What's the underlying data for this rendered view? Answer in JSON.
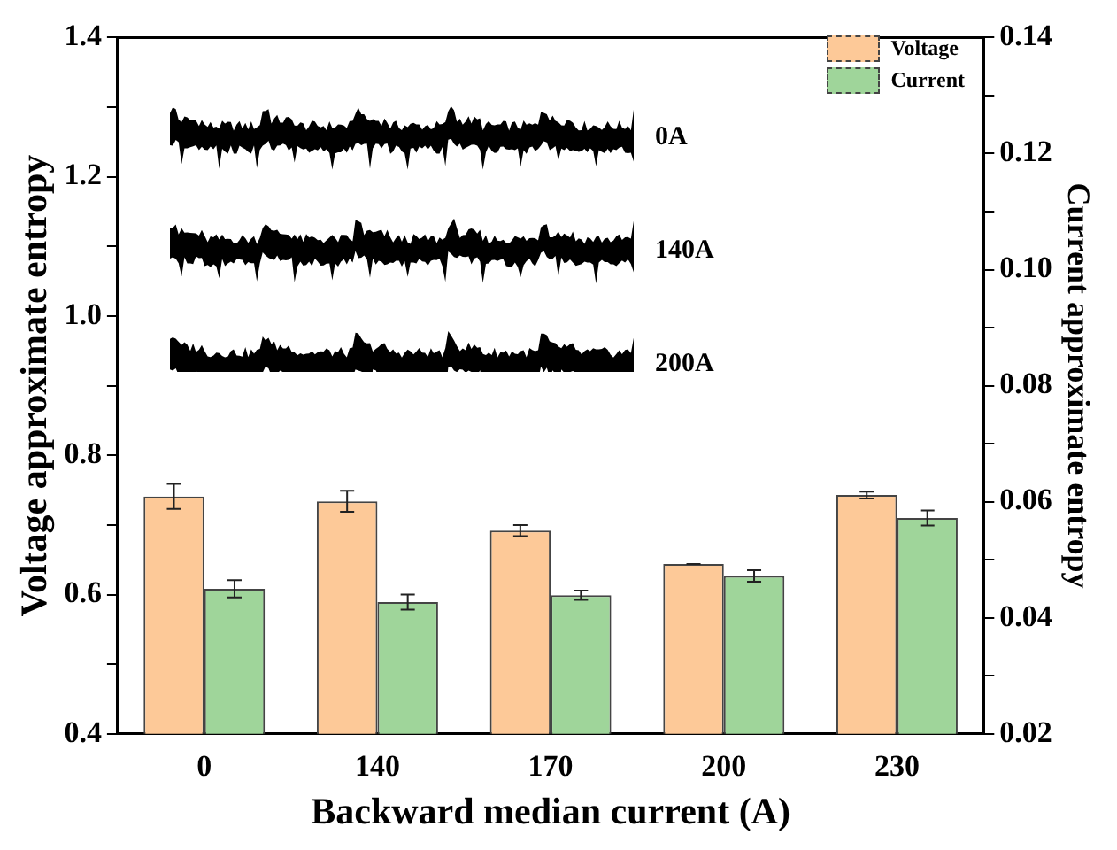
{
  "chart_data": {
    "type": "bar",
    "xlabel": "Backward median current (A)",
    "ylabel": "Voltage approximate entropy",
    "y2label": "Current approximate entropy",
    "categories": [
      "0",
      "140",
      "170",
      "200",
      "230"
    ],
    "series": [
      {
        "name": "Voltage",
        "color": "#fdc998",
        "values": [
          0.741,
          0.734,
          0.692,
          0.644,
          0.743
        ],
        "errors": [
          0.018,
          0.015,
          0.008,
          0,
          0.005
        ]
      },
      {
        "name": "Current",
        "color": "#9fd59a",
        "axis": "y2",
        "values": [
          0.045,
          0.0427,
          0.0439,
          0.0472,
          0.0572
        ],
        "errors": [
          0.0015,
          0.0013,
          0.0008,
          0.001,
          0.0013
        ]
      }
    ],
    "ylim": [
      0.4,
      1.4
    ],
    "yticks": [
      0.4,
      {
        "value": 0.5,
        "label": null
      },
      0.6,
      {
        "value": 0.7,
        "label": null
      },
      0.8,
      {
        "value": 0.9,
        "label": null
      },
      {
        "value": 1.0,
        "label": "1.0"
      },
      {
        "value": 1.1,
        "label": null
      },
      1.2,
      {
        "value": 1.3,
        "label": null
      },
      1.4
    ],
    "y2lim": [
      0.02,
      0.14
    ],
    "y2ticks": [
      0.02,
      {
        "value": 0.03,
        "label": null
      },
      0.04,
      {
        "value": 0.05,
        "label": null
      },
      0.06,
      {
        "value": 0.07,
        "label": null
      },
      0.08,
      {
        "value": 0.09,
        "label": null
      },
      {
        "value": 0.1,
        "label": "0.10"
      },
      {
        "value": 0.11,
        "label": null
      },
      0.12,
      {
        "value": 0.13,
        "label": null
      },
      0.14
    ],
    "annotations": [
      "0A",
      "140A",
      "200A"
    ],
    "legend": "top right",
    "grid": false
  }
}
